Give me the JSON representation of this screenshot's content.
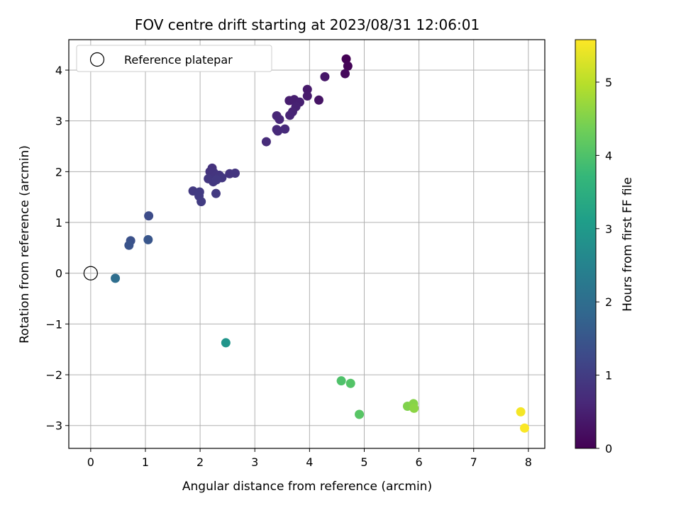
{
  "chart_data": {
    "type": "scatter",
    "title": "FOV centre drift starting at 2023/08/31 12:06:01",
    "xlabel": "Angular distance from reference (arcmin)",
    "ylabel": "Rotation from reference (arcmin)",
    "xlim": [
      -0.4,
      8.3
    ],
    "ylim": [
      -3.45,
      4.6
    ],
    "xticks": [
      0,
      1,
      2,
      3,
      4,
      5,
      6,
      7,
      8
    ],
    "yticks": [
      -3,
      -2,
      -1,
      0,
      1,
      2,
      3,
      4
    ],
    "xtick_labels": [
      "0",
      "1",
      "2",
      "3",
      "4",
      "5",
      "6",
      "7",
      "8"
    ],
    "ytick_labels": [
      "−3",
      "−2",
      "−1",
      "0",
      "1",
      "2",
      "3",
      "4"
    ],
    "grid": true,
    "legend": {
      "placement": "top-left",
      "entries": [
        {
          "label": "Reference platepar",
          "marker": "open-circle"
        }
      ],
      "reference_point": {
        "x": 0,
        "y": 0
      }
    },
    "colorbar": {
      "label": "Hours from first FF file",
      "colormap": "viridis",
      "range": [
        0,
        5.58
      ],
      "ticks": [
        0,
        1,
        2,
        3,
        4,
        5
      ],
      "tick_labels": [
        "0",
        "1",
        "2",
        "3",
        "4",
        "5"
      ],
      "stops": [
        "#440154",
        "#482878",
        "#3e4989",
        "#31688e",
        "#26828e",
        "#1f9e89",
        "#35b779",
        "#6ece58",
        "#b5de2b",
        "#fde725"
      ]
    },
    "points": [
      {
        "x": 4.67,
        "y": 4.22,
        "t": 0.02
      },
      {
        "x": 4.7,
        "y": 4.08,
        "t": 0.05
      },
      {
        "x": 4.65,
        "y": 3.93,
        "t": 0.12
      },
      {
        "x": 4.28,
        "y": 3.87,
        "t": 0.35
      },
      {
        "x": 3.96,
        "y": 3.62,
        "t": 0.4
      },
      {
        "x": 3.96,
        "y": 3.49,
        "t": 0.42
      },
      {
        "x": 4.17,
        "y": 3.41,
        "t": 0.3
      },
      {
        "x": 3.63,
        "y": 3.4,
        "t": 0.45
      },
      {
        "x": 3.72,
        "y": 3.42,
        "t": 0.48
      },
      {
        "x": 3.82,
        "y": 3.37,
        "t": 0.5
      },
      {
        "x": 3.75,
        "y": 3.28,
        "t": 0.52
      },
      {
        "x": 3.69,
        "y": 3.18,
        "t": 0.55
      },
      {
        "x": 3.64,
        "y": 3.11,
        "t": 0.58
      },
      {
        "x": 3.4,
        "y": 3.1,
        "t": 0.6
      },
      {
        "x": 3.45,
        "y": 3.03,
        "t": 0.62
      },
      {
        "x": 3.4,
        "y": 2.83,
        "t": 0.65
      },
      {
        "x": 3.42,
        "y": 2.8,
        "t": 0.66
      },
      {
        "x": 3.55,
        "y": 2.84,
        "t": 0.68
      },
      {
        "x": 3.21,
        "y": 2.59,
        "t": 0.7
      },
      {
        "x": 2.22,
        "y": 2.07,
        "t": 0.8
      },
      {
        "x": 2.18,
        "y": 2.0,
        "t": 0.82
      },
      {
        "x": 2.25,
        "y": 1.98,
        "t": 0.84
      },
      {
        "x": 2.28,
        "y": 1.92,
        "t": 0.86
      },
      {
        "x": 2.35,
        "y": 1.93,
        "t": 0.88
      },
      {
        "x": 2.4,
        "y": 1.88,
        "t": 0.9
      },
      {
        "x": 2.15,
        "y": 1.86,
        "t": 0.91
      },
      {
        "x": 2.24,
        "y": 1.8,
        "t": 0.92
      },
      {
        "x": 2.3,
        "y": 1.84,
        "t": 0.93
      },
      {
        "x": 2.54,
        "y": 1.96,
        "t": 0.85
      },
      {
        "x": 2.64,
        "y": 1.97,
        "t": 0.86
      },
      {
        "x": 2.29,
        "y": 1.57,
        "t": 0.95
      },
      {
        "x": 1.87,
        "y": 1.62,
        "t": 0.96
      },
      {
        "x": 1.99,
        "y": 1.6,
        "t": 0.97
      },
      {
        "x": 1.98,
        "y": 1.52,
        "t": 0.98
      },
      {
        "x": 2.02,
        "y": 1.41,
        "t": 0.99
      },
      {
        "x": 1.06,
        "y": 1.13,
        "t": 1.3
      },
      {
        "x": 0.73,
        "y": 0.64,
        "t": 1.4
      },
      {
        "x": 0.7,
        "y": 0.55,
        "t": 1.45
      },
      {
        "x": 1.05,
        "y": 0.66,
        "t": 1.5
      },
      {
        "x": 0.45,
        "y": -0.1,
        "t": 2.0
      },
      {
        "x": 2.47,
        "y": -1.37,
        "t": 2.9
      },
      {
        "x": 4.58,
        "y": -2.12,
        "t": 4.0
      },
      {
        "x": 4.75,
        "y": -2.17,
        "t": 4.05
      },
      {
        "x": 4.91,
        "y": -2.78,
        "t": 4.1
      },
      {
        "x": 5.79,
        "y": -2.62,
        "t": 4.5
      },
      {
        "x": 5.9,
        "y": -2.57,
        "t": 4.55
      },
      {
        "x": 5.91,
        "y": -2.66,
        "t": 4.6
      },
      {
        "x": 7.86,
        "y": -2.73,
        "t": 5.5
      },
      {
        "x": 7.93,
        "y": -3.05,
        "t": 5.55
      }
    ]
  }
}
